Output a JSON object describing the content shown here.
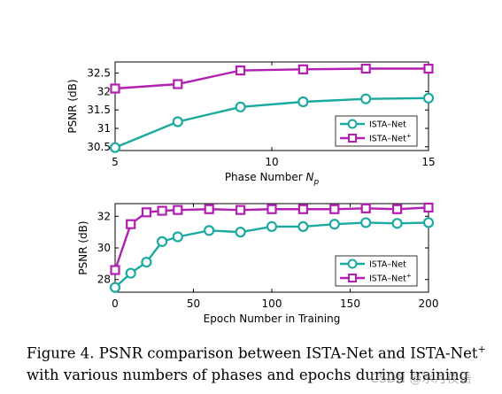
{
  "chart_data": [
    {
      "type": "line",
      "xlabel": "Phase Number",
      "xlabel_symbol": "N",
      "xlabel_subscript": "p",
      "ylabel": "PSNR (dB)",
      "xlim": [
        5,
        15
      ],
      "ylim": [
        30.4,
        32.8
      ],
      "xticks": [
        5,
        10,
        15
      ],
      "yticks": [
        30.5,
        31,
        31.5,
        32,
        32.5
      ],
      "ytick_labels": [
        "30.5",
        "31",
        "31.5",
        "32",
        "32.5"
      ],
      "grid": false,
      "legend_position": "lower-right",
      "series": [
        {
          "name": "ISTA–Net",
          "marker": "circle",
          "color": "#1aaaa0",
          "x": [
            5,
            7,
            9,
            11,
            13,
            15
          ],
          "y": [
            30.48,
            31.18,
            31.58,
            31.72,
            31.8,
            31.82
          ]
        },
        {
          "name": "ISTA–Net",
          "name_sup": "+",
          "marker": "square",
          "color": "#b31fb3",
          "x": [
            5,
            7,
            9,
            11,
            13,
            15
          ],
          "y": [
            32.08,
            32.2,
            32.57,
            32.6,
            32.62,
            32.62
          ]
        }
      ]
    },
    {
      "type": "line",
      "xlabel": "Epoch Number in Training",
      "ylabel": "PSNR (dB)",
      "xlim": [
        0,
        200
      ],
      "ylim": [
        27.2,
        32.8
      ],
      "xticks": [
        0,
        50,
        100,
        150,
        200
      ],
      "yticks": [
        28,
        30,
        32
      ],
      "ytick_labels": [
        "28",
        "30",
        "32"
      ],
      "grid": false,
      "legend_position": "lower-right",
      "series": [
        {
          "name": "ISTA–Net",
          "marker": "circle",
          "color": "#1aaaa0",
          "x": [
            0,
            10,
            20,
            30,
            40,
            60,
            80,
            100,
            120,
            140,
            160,
            180,
            200
          ],
          "y": [
            27.5,
            28.4,
            29.1,
            30.4,
            30.7,
            31.1,
            31.0,
            31.35,
            31.35,
            31.5,
            31.6,
            31.55,
            31.6
          ]
        },
        {
          "name": "ISTA–Net",
          "name_sup": "+",
          "marker": "square",
          "color": "#b31fb3",
          "x": [
            0,
            10,
            20,
            30,
            40,
            60,
            80,
            100,
            120,
            140,
            160,
            180,
            200
          ],
          "y": [
            28.6,
            31.5,
            32.25,
            32.35,
            32.4,
            32.45,
            32.4,
            32.45,
            32.45,
            32.45,
            32.5,
            32.45,
            32.55
          ]
        }
      ]
    }
  ],
  "caption": {
    "prefix": "Figure 4. PSNR comparison between ISTA-Net and ISTA-Net",
    "sup": "+",
    "suffix": "with various numbers of phases and epochs during training"
  },
  "watermark": "CSDN @水月夜语"
}
